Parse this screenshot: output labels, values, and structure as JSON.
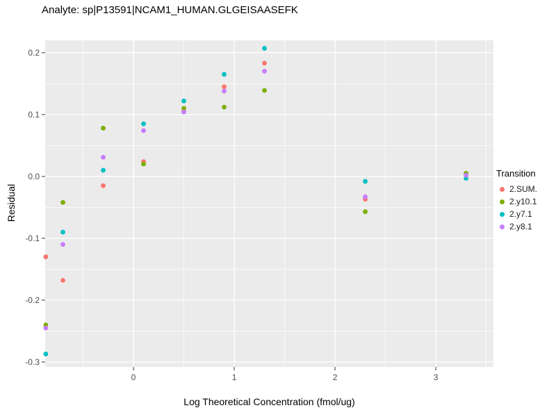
{
  "title": "Analyte: sp|P13591|NCAM1_HUMAN.GLGEISAASEFK",
  "chart_data": {
    "type": "scatter",
    "title": "Analyte: sp|P13591|NCAM1_HUMAN.GLGEISAASEFK",
    "xlabel": "Log Theoretical Concentration (fmol/ug)",
    "ylabel": "Residual",
    "legend_title": "Transition",
    "legend_position": "right",
    "grid": "on",
    "panel_bg": "#EBEBEB",
    "grid_color": "#FFFFFF",
    "tick_label_color": "#4d4d4d",
    "xlim": [
      -0.876,
      3.572
    ],
    "ylim": [
      -0.308,
      0.22
    ],
    "x_ticks": [
      0,
      1,
      2,
      3
    ],
    "y_ticks": [
      -0.3,
      -0.2,
      -0.1,
      0.0,
      0.1,
      0.2
    ],
    "x_minor": [
      -0.5,
      0.5,
      1.5,
      2.5,
      3.5
    ],
    "y_minor": [
      -0.25,
      -0.15,
      -0.05,
      0.05,
      0.15
    ],
    "x": [
      -0.87,
      -0.7,
      -0.3,
      0.1,
      0.5,
      0.9,
      1.3,
      2.3,
      3.3
    ],
    "series": [
      {
        "name": "2.SUM.",
        "color": "#F8766D",
        "values": [
          -0.13,
          -0.168,
          -0.015,
          0.024,
          0.105,
          0.145,
          0.183,
          -0.037,
          0.005
        ]
      },
      {
        "name": "2.y10.1",
        "color": "#7CAE00",
        "values": [
          -0.24,
          -0.042,
          0.078,
          0.02,
          0.11,
          0.112,
          0.139,
          -0.057,
          0.005
        ]
      },
      {
        "name": "2.y7.1",
        "color": "#00BFC4",
        "values": [
          -0.287,
          -0.09,
          0.01,
          0.085,
          0.122,
          0.165,
          0.207,
          -0.008,
          -0.003
        ]
      },
      {
        "name": "2.y8.1",
        "color": "#C77CFF",
        "values": [
          -0.245,
          -0.11,
          0.031,
          0.074,
          0.104,
          0.138,
          0.17,
          -0.033,
          0.002
        ]
      }
    ]
  }
}
